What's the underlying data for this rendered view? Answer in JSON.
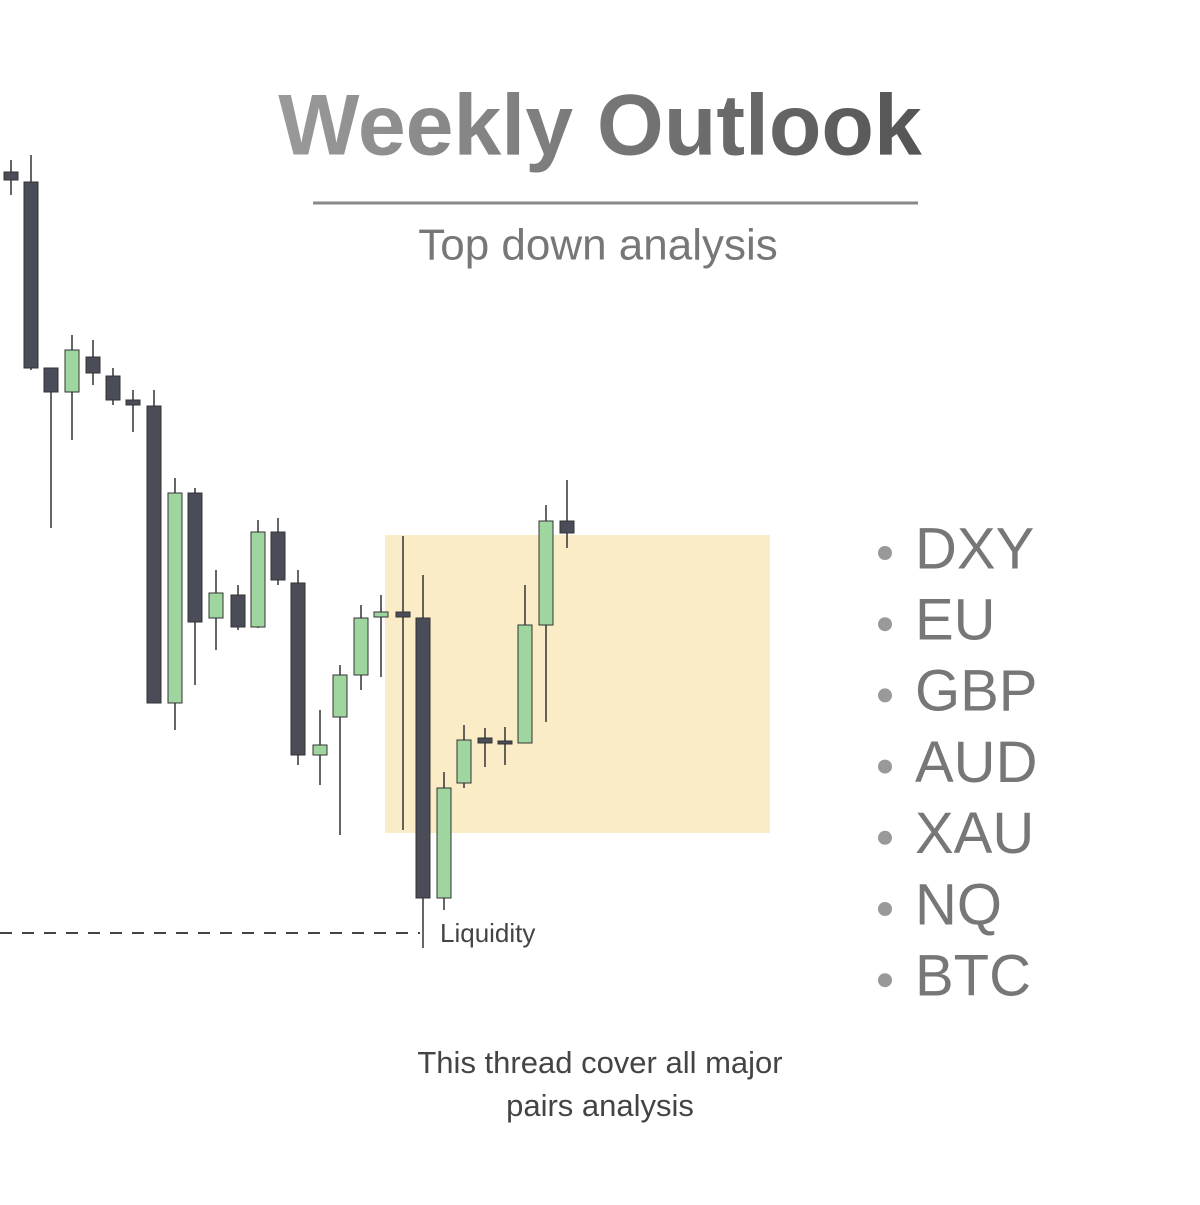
{
  "header": {
    "title": "Weekly Outlook",
    "subtitle": "Top down analysis"
  },
  "chart_annotation": "Liquidity",
  "pairs": [
    "DXY",
    "EU",
    "GBP",
    "AUD",
    "XAU",
    "NQ",
    "BTC"
  ],
  "footer": {
    "lines": [
      "This thread cover all major",
      "pairs analysis"
    ]
  }
}
